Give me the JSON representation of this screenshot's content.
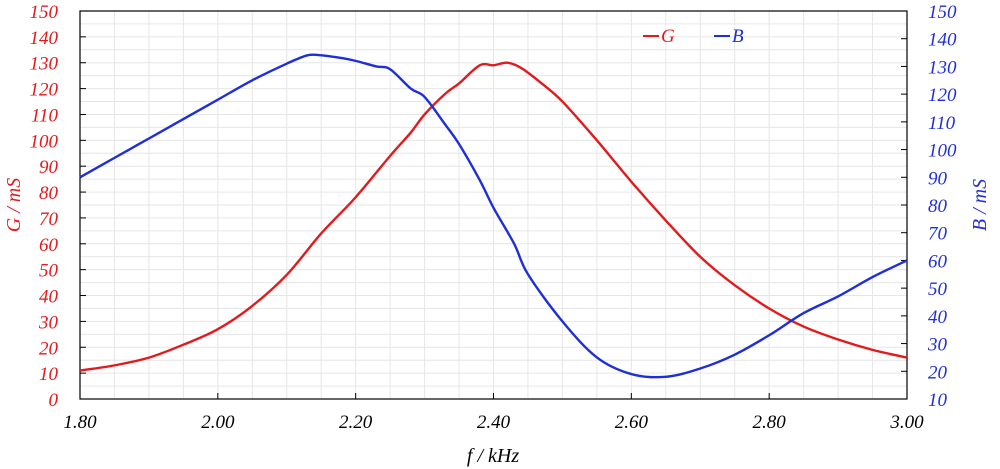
{
  "chart_data": {
    "type": "line",
    "title": "",
    "xlabel": "f / kHz",
    "ylabel_left": "G / mS",
    "ylabel_right": "B / mS",
    "xlim": [
      1.8,
      3.0
    ],
    "ylim_left": [
      0,
      150
    ],
    "ylim_right": [
      10,
      150
    ],
    "x_ticks": [
      "1.80",
      "2.00",
      "2.20",
      "2.40",
      "2.60",
      "2.80",
      "3.00"
    ],
    "y_ticks_left": [
      "0",
      "10",
      "20",
      "30",
      "40",
      "50",
      "60",
      "70",
      "80",
      "90",
      "100",
      "110",
      "120",
      "130",
      "140",
      "150"
    ],
    "y_ticks_right": [
      "10",
      "20",
      "30",
      "40",
      "50",
      "60",
      "70",
      "80",
      "90",
      "100",
      "110",
      "120",
      "130",
      "140",
      "150"
    ],
    "grid": true,
    "legend_position": "top-right",
    "colors": {
      "G": "#e31a1c",
      "B": "#1f2fd6",
      "left_axis": "#e31a1c",
      "right_axis": "#1f2fd6"
    },
    "series": [
      {
        "name": "G",
        "axis": "left",
        "x": [
          1.8,
          1.85,
          1.9,
          1.95,
          2.0,
          2.05,
          2.1,
          2.15,
          2.2,
          2.25,
          2.28,
          2.3,
          2.33,
          2.35,
          2.38,
          2.4,
          2.42,
          2.44,
          2.47,
          2.5,
          2.55,
          2.6,
          2.65,
          2.7,
          2.75,
          2.8,
          2.85,
          2.9,
          2.95,
          3.0
        ],
        "y": [
          11,
          13,
          16,
          21,
          27,
          36,
          48,
          64,
          78,
          94,
          103,
          110,
          118,
          122,
          129,
          129,
          130,
          128,
          122,
          115,
          100,
          84,
          69,
          55,
          44,
          35,
          28,
          23,
          19,
          16
        ]
      },
      {
        "name": "B",
        "axis": "right",
        "x": [
          1.8,
          1.85,
          1.9,
          1.95,
          2.0,
          2.05,
          2.1,
          2.13,
          2.15,
          2.18,
          2.2,
          2.23,
          2.25,
          2.28,
          2.3,
          2.33,
          2.35,
          2.38,
          2.4,
          2.43,
          2.45,
          2.5,
          2.55,
          2.6,
          2.65,
          2.7,
          2.75,
          2.8,
          2.85,
          2.9,
          2.95,
          3.0
        ],
        "y": [
          90,
          97,
          104,
          111,
          118,
          125,
          131,
          134,
          134,
          133,
          132,
          130,
          129,
          122,
          119,
          109,
          102,
          89,
          79,
          66,
          55,
          38,
          25,
          19,
          18,
          21,
          26,
          33,
          41,
          47,
          54,
          60
        ]
      }
    ]
  }
}
